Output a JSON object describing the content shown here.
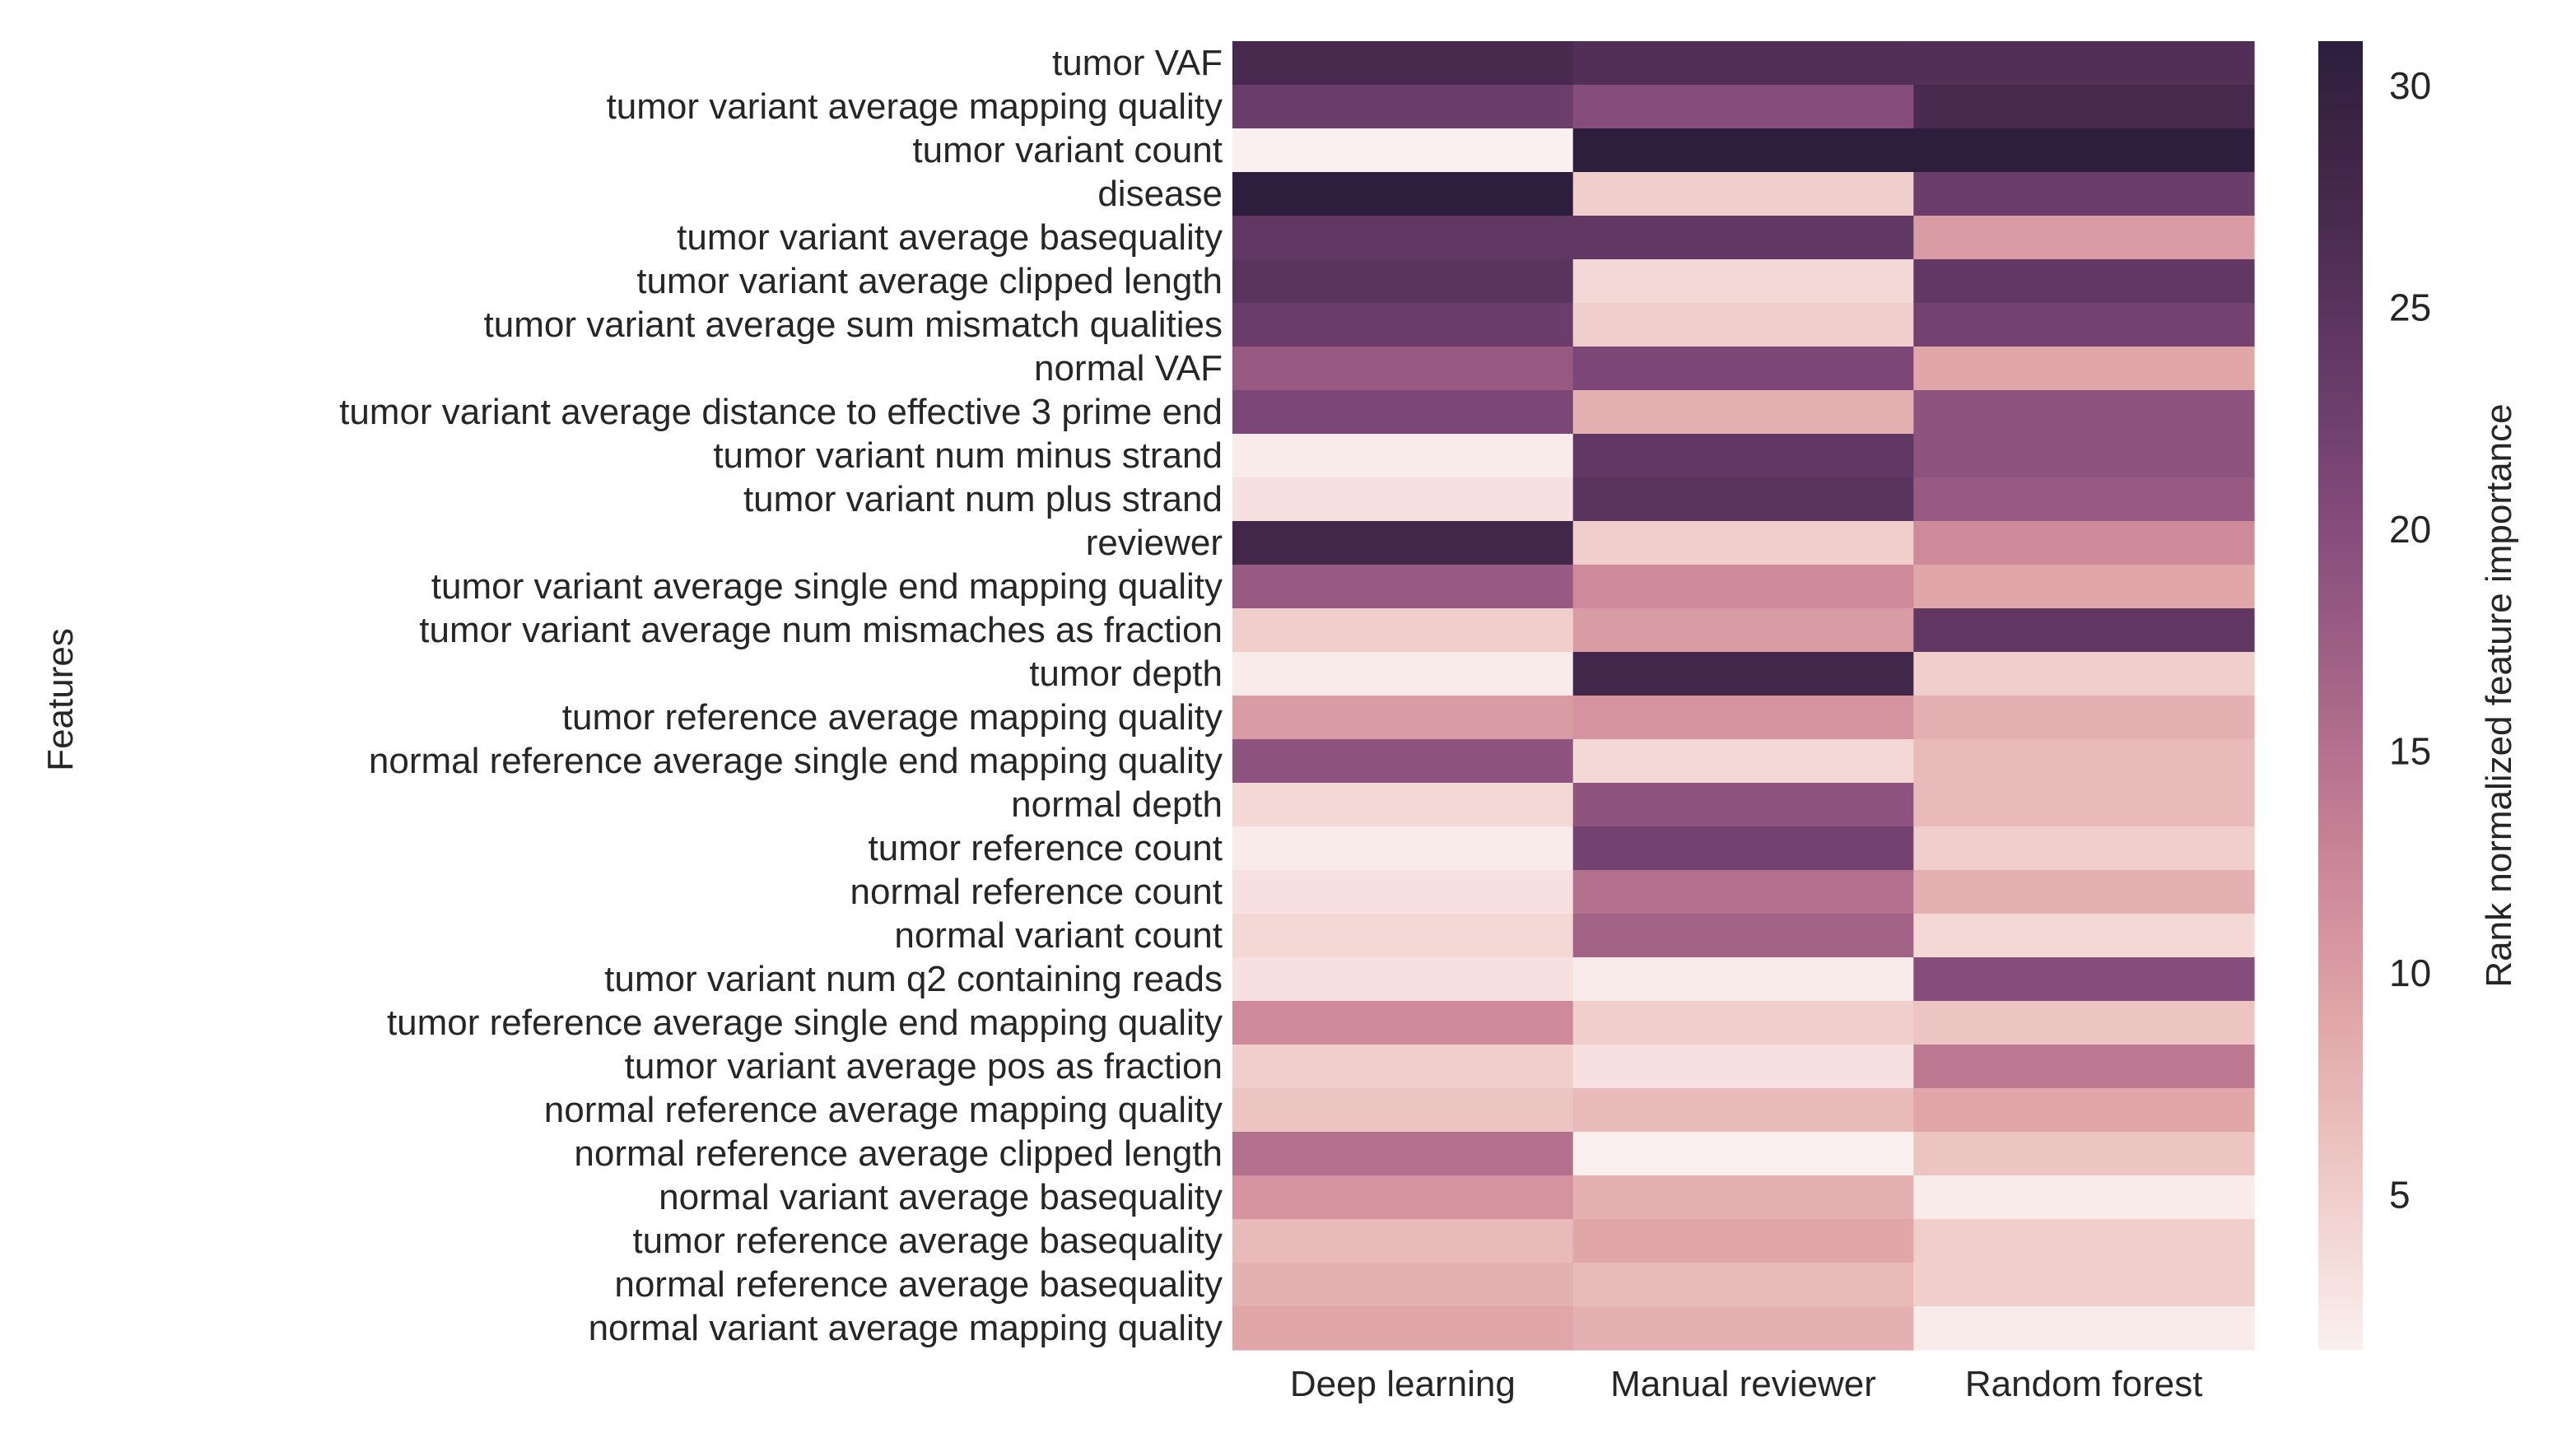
{
  "chart_data": {
    "type": "heatmap",
    "title": "",
    "ylabel": "Features",
    "xlabel": "",
    "columns": [
      "Deep learning",
      "Manual reviewer",
      "Random forest"
    ],
    "rows": [
      "tumor VAF",
      "tumor variant average mapping quality",
      "tumor variant count",
      "disease",
      "tumor variant average basequality",
      "tumor variant average clipped length",
      "tumor variant average sum mismatch qualities",
      "normal VAF",
      "tumor variant average distance to effective 3 prime end",
      "tumor variant num minus strand",
      "tumor variant num plus strand",
      "reviewer",
      "tumor variant average single end mapping quality",
      "tumor variant average num mismaches as fraction",
      "tumor depth",
      "tumor reference average mapping quality",
      "normal reference average single end mapping quality",
      "normal depth",
      "tumor reference count",
      "normal reference count",
      "normal variant count",
      "tumor variant num q2 containing reads",
      "tumor reference average single end mapping quality",
      "tumor variant average pos as fraction",
      "normal reference average mapping quality",
      "normal reference average clipped length",
      "normal variant average basequality",
      "tumor reference average basequality",
      "normal reference average basequality",
      "normal variant average mapping quality"
    ],
    "values": [
      [
        27,
        26,
        26
      ],
      [
        23,
        20,
        27
      ],
      [
        1,
        31,
        31
      ],
      [
        31,
        5,
        23
      ],
      [
        24,
        24,
        10
      ],
      [
        25,
        4,
        24
      ],
      [
        23,
        5,
        22
      ],
      [
        18,
        21,
        9
      ],
      [
        21,
        8,
        19
      ],
      [
        2,
        24,
        19
      ],
      [
        3,
        25,
        18
      ],
      [
        28,
        5,
        12
      ],
      [
        18,
        12,
        9
      ],
      [
        5,
        10,
        24
      ],
      [
        2,
        28,
        5
      ],
      [
        10,
        11,
        8
      ],
      [
        19,
        4,
        7
      ],
      [
        4,
        19,
        7
      ],
      [
        2,
        22,
        5
      ],
      [
        3,
        15,
        8
      ],
      [
        4,
        17,
        4
      ],
      [
        3,
        2,
        20
      ],
      [
        12,
        5,
        6
      ],
      [
        5,
        3,
        14
      ],
      [
        6,
        7,
        9
      ],
      [
        15,
        1,
        6
      ],
      [
        11,
        8,
        2
      ],
      [
        7,
        9,
        5
      ],
      [
        8,
        7,
        5
      ],
      [
        9,
        8,
        2
      ]
    ],
    "colorbar": {
      "label": "Rank normalized feature importance",
      "range": [
        1.5,
        31
      ],
      "ticks": [
        5,
        10,
        15,
        20,
        25,
        30
      ],
      "colors": [
        "#faf0ef",
        "#efccc9",
        "#e1a7a9",
        "#cb8498",
        "#a86788",
        "#864c7c",
        "#643a67",
        "#46294d",
        "#2d1e3e"
      ]
    },
    "grid": false,
    "legend": "colorbar-right"
  }
}
